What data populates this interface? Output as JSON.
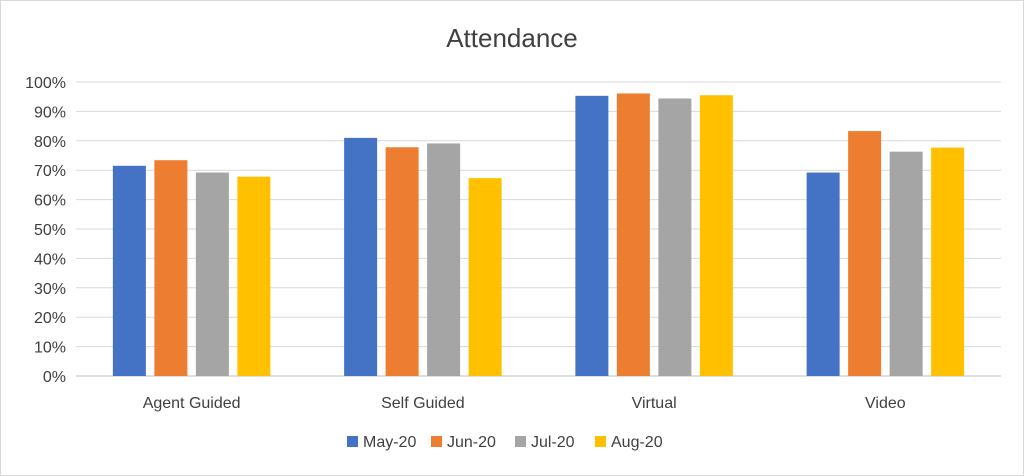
{
  "chart_data": {
    "type": "bar",
    "title": "Attendance",
    "categories": [
      "Agent Guided",
      "Self Guided",
      "Virtual",
      "Video"
    ],
    "series": [
      {
        "name": "May-20",
        "color": "#4472C4",
        "values": [
          71.5,
          81,
          95.3,
          69.2
        ]
      },
      {
        "name": "Jun-20",
        "color": "#ED7D31",
        "values": [
          73.4,
          77.8,
          96.1,
          83.3
        ]
      },
      {
        "name": "Jul-20",
        "color": "#A5A5A5",
        "values": [
          69.2,
          79.1,
          94.4,
          76.3
        ]
      },
      {
        "name": "Aug-20",
        "color": "#FFC000",
        "values": [
          67.8,
          67.3,
          95.5,
          77.7
        ]
      }
    ],
    "ylim": [
      0,
      100
    ],
    "yticks": [
      "0%",
      "10%",
      "20%",
      "30%",
      "40%",
      "50%",
      "60%",
      "70%",
      "80%",
      "90%",
      "100%"
    ],
    "grid": true,
    "legend": "bottom"
  }
}
